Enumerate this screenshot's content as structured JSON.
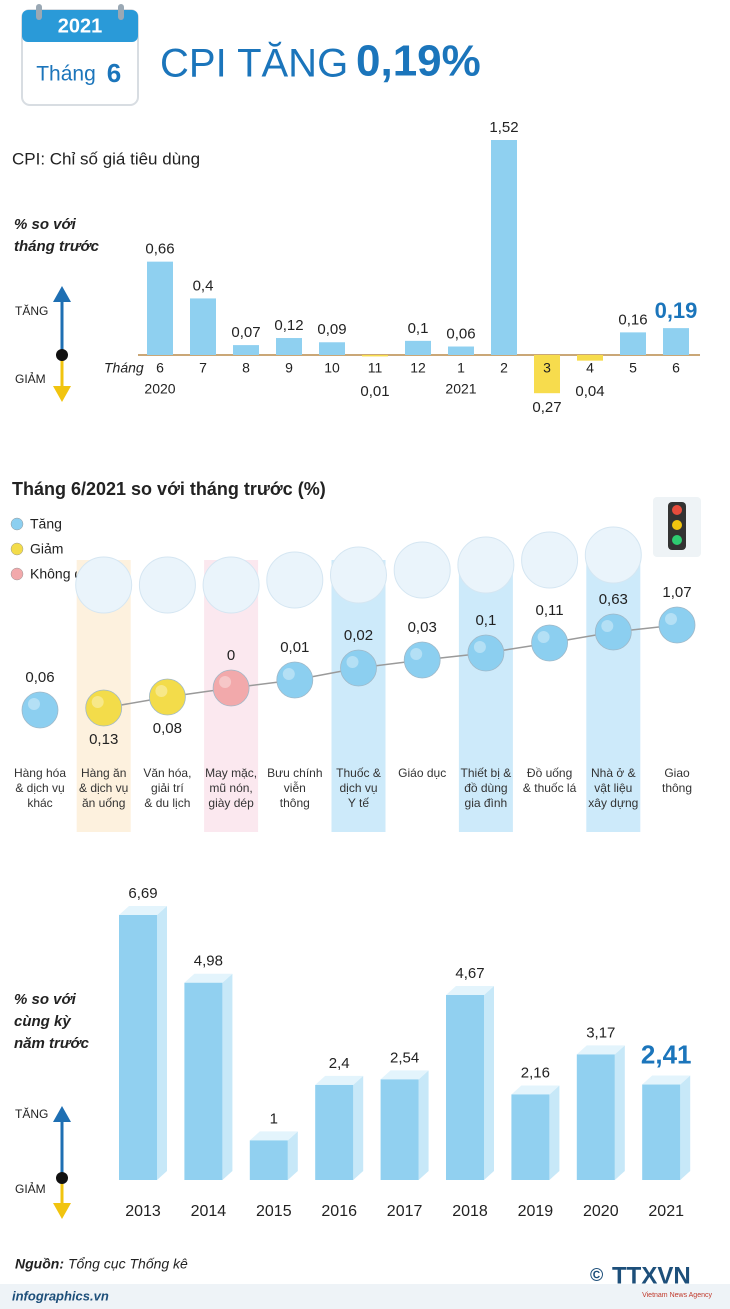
{
  "header": {
    "year": "2021",
    "month_prefix": "Tháng",
    "month": "6",
    "title": "CPI TĂNG",
    "title_value": "0,19%"
  },
  "chart_data": [
    {
      "type": "bar",
      "subtitle": "CPI: Chỉ số giá tiêu dùng",
      "y_label": "% so với\ntháng trước",
      "up_label": "TĂNG",
      "down_label": "GIẢM",
      "x_prefix": "Tháng",
      "categories": [
        "6",
        "7",
        "8",
        "9",
        "10",
        "11",
        "12",
        "1",
        "2",
        "3",
        "4",
        "5",
        "6"
      ],
      "years": [
        "2020",
        null,
        null,
        null,
        null,
        null,
        null,
        "2021",
        null,
        null,
        null,
        null,
        null
      ],
      "values": [
        0.66,
        0.4,
        0.07,
        0.12,
        0.09,
        -0.01,
        0.1,
        0.06,
        1.52,
        -0.27,
        -0.04,
        0.16,
        0.19
      ],
      "value_labels": [
        "0,66",
        "0,4",
        "0,07",
        "0,12",
        "0,09",
        "0,01",
        "0,1",
        "0,06",
        "1,52",
        "0,27",
        "0,04",
        "0,16",
        "0,19"
      ],
      "color": "#8fd0f0",
      "negative_color": "#f7dc4d",
      "highlight": "last",
      "highlight_color": "#1b75bb"
    },
    {
      "type": "dot",
      "title": "Tháng 6/2021 so với tháng trước (%)",
      "legend": [
        {
          "name": "Tăng",
          "color": "#8ccff0"
        },
        {
          "name": "Giảm",
          "color": "#f3dc4a"
        },
        {
          "name": "Không đổi",
          "color": "#f2a9ab"
        }
      ],
      "categories": [
        "Hàng hóa\n& dịch vụ\nkhác",
        "Hàng ăn\n& dịch vụ\năn uống",
        "Văn hóa,\ngiải trí\n& du lịch",
        "May mặc,\nmũ nón,\ngiày dép",
        "Bưu chính\nviễn\nthông",
        "Thuốc &\ndịch vụ\nY tế",
        "Giáo dục",
        "Thiết bị &\nđồ dùng\ngia đình",
        "Đồ uống\n& thuốc lá",
        "Nhà ở &\nvật liệu\nxây dựng",
        "Giao\nthông"
      ],
      "values": [
        0.06,
        -0.13,
        -0.08,
        0,
        0.01,
        0.02,
        0.03,
        0.1,
        0.11,
        0.63,
        1.07
      ],
      "value_labels": [
        "0,06",
        "0,13",
        "0,08",
        "0",
        "0,01",
        "0,02",
        "0,03",
        "0,1",
        "0,11",
        "0,63",
        "1,07"
      ],
      "band_colors": [
        null,
        "#fdf1de",
        null,
        "#fbe8ef",
        null,
        "#cdeafa",
        null,
        "#cdeafa",
        null,
        "#cdeafa",
        null
      ]
    },
    {
      "type": "bar3d",
      "y_label": "% so với\ncùng kỳ\nnăm trước",
      "up_label": "TĂNG",
      "down_label": "GIẢM",
      "categories": [
        "2013",
        "2014",
        "2015",
        "2016",
        "2017",
        "2018",
        "2019",
        "2020",
        "2021"
      ],
      "values": [
        6.69,
        4.98,
        1,
        2.4,
        2.54,
        4.67,
        2.16,
        3.17,
        2.41
      ],
      "value_labels": [
        "6,69",
        "4,98",
        "1",
        "2,4",
        "2,54",
        "4,67",
        "2,16",
        "3,17",
        "2,41"
      ],
      "color": "#91d0f0",
      "highlight": "last",
      "highlight_color": "#1b75bb"
    }
  ],
  "footer": {
    "source_label": "Nguồn:",
    "source": "Tổng cục Thống kê",
    "site": "infographics.vn",
    "copyright": "©",
    "agency": "TTXVN",
    "agency_en": "Vietnam News Agency"
  }
}
